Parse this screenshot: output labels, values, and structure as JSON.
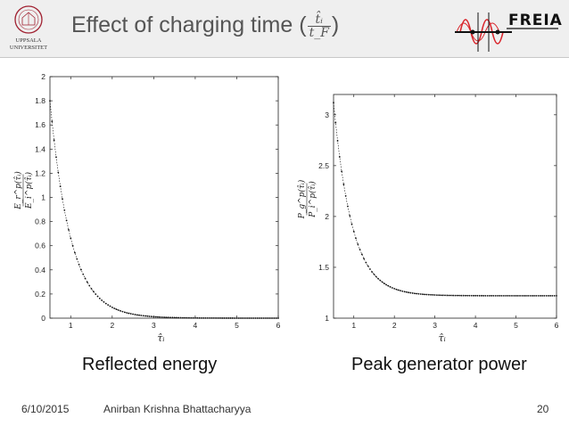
{
  "header": {
    "title_text": "Effect of charging time (",
    "title_close": ")",
    "frac_num": "t̂ᵢ",
    "frac_den": "t_F",
    "logo_left_text_1": "UPPSALA",
    "logo_left_text_2": "UNIVERSITET",
    "logo_right_text": "FREIA"
  },
  "captions": {
    "left": "Reflected energy",
    "right": "Peak generator power"
  },
  "footer": {
    "date": "6/10/2015",
    "author": "Anirban Krishna Bhattacharyya",
    "page": "20"
  },
  "colors": {
    "header_bg": "#efefef",
    "title": "#555555",
    "curve": "#111111",
    "red": "#d9252b"
  },
  "chart_data": [
    {
      "type": "scatter",
      "name": "left",
      "title": "",
      "xlabel": "τ̂ᵢ",
      "ylabel_num": "E_r^p(τ̂ᵢ)",
      "ylabel_den": "E_i^p(τ̂ᵢ)",
      "xlim": [
        0.5,
        6
      ],
      "ylim": [
        0,
        2
      ],
      "xticks": [
        1,
        2,
        3,
        4,
        5,
        6
      ],
      "xtick_labels": [
        "1",
        "2",
        "3",
        "4",
        "5",
        "6"
      ],
      "yticks": [
        0,
        0.2,
        0.4,
        0.6,
        0.8,
        1,
        1.2,
        1.4,
        1.6,
        1.8,
        2
      ],
      "ytick_labels": [
        "0",
        "0.2",
        "0.4",
        "0.6",
        "0.8",
        "1",
        "1.2",
        "1.4",
        "1.6",
        "1.8",
        "2"
      ],
      "series": [
        {
          "name": "reflected energy",
          "model": {
            "kind": "exp_decay",
            "a": 1.8,
            "x0": 0.5,
            "rate": 2.0,
            "offset": 0,
            "x_start": 0.5,
            "x_end": 6.0,
            "x_step": 0.05
          }
        }
      ]
    },
    {
      "type": "scatter",
      "name": "right",
      "title": "",
      "xlabel": "τ̂ᵢ",
      "ylabel_num": "P_g^p(τ̂ᵢ)",
      "ylabel_den": "P_i^p(τ̂ᵢ)",
      "xlim": [
        0.5,
        6
      ],
      "ylim": [
        1,
        3.2
      ],
      "xticks": [
        1,
        2,
        3,
        4,
        5,
        6
      ],
      "xtick_labels": [
        "1",
        "2",
        "3",
        "4",
        "5",
        "6"
      ],
      "yticks": [
        1,
        1.5,
        2,
        2.5,
        3
      ],
      "ytick_labels": [
        "1",
        "1.5",
        "2",
        "2.5",
        "3"
      ],
      "series": [
        {
          "name": "peak generator power",
          "model": {
            "kind": "exp_decay",
            "a": 1.9,
            "x0": 0.5,
            "rate": 2.2,
            "offset": 1.22,
            "x_start": 0.5,
            "x_end": 6.0,
            "x_step": 0.05
          }
        }
      ]
    }
  ]
}
